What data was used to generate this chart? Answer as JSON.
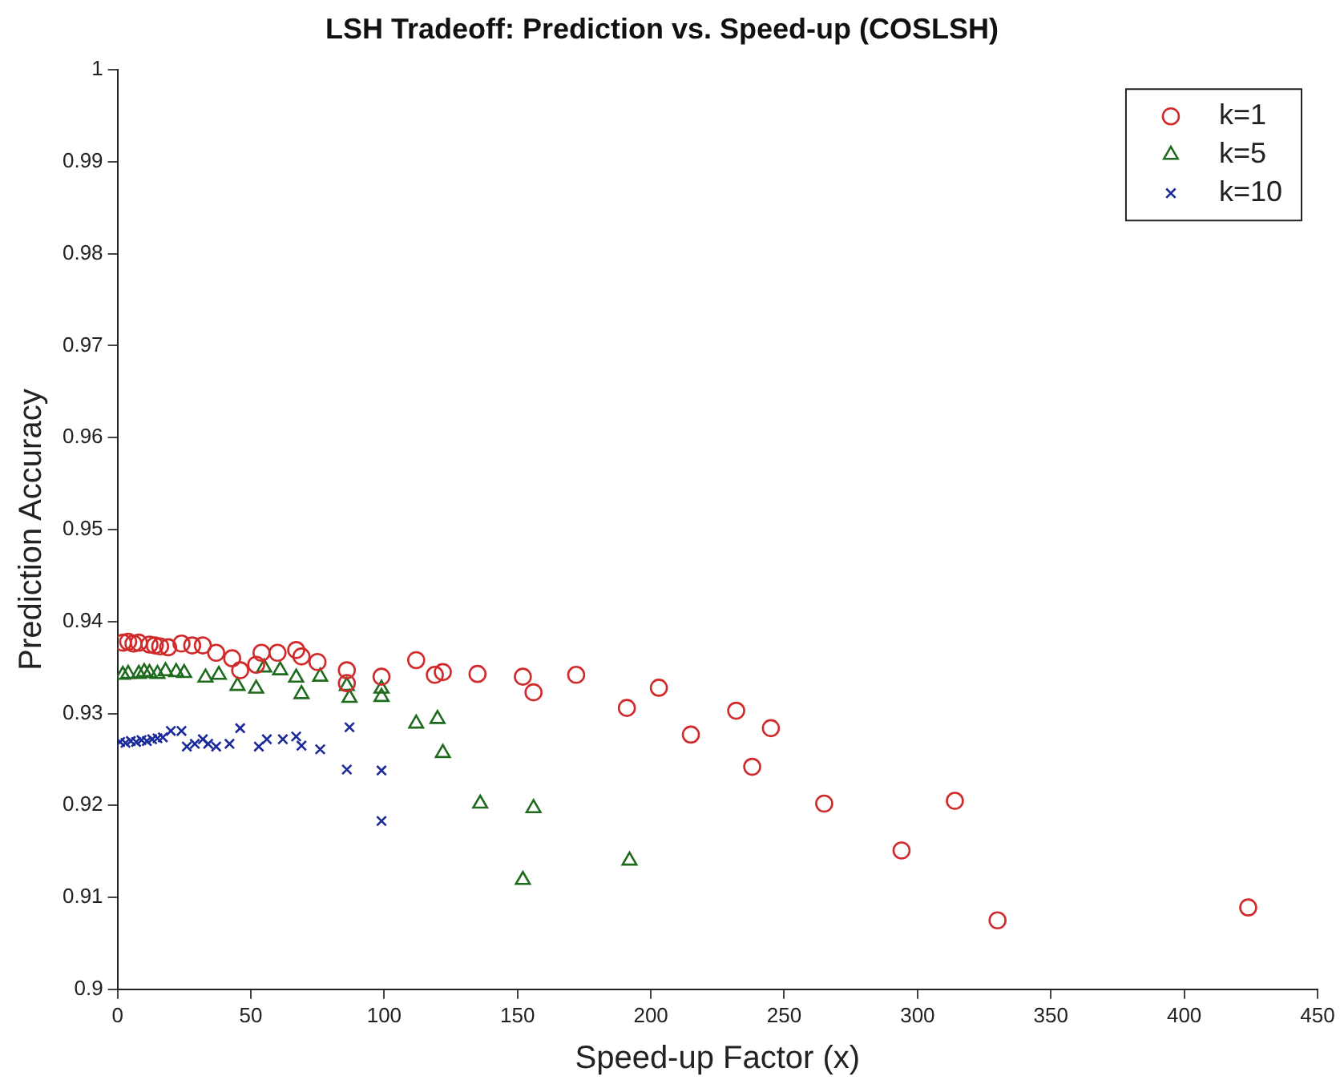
{
  "chart_data": {
    "type": "scatter",
    "title": "LSH Tradeoff: Prediction vs. Speed-up (COSLSH)",
    "xlabel": "Speed-up Factor (x)",
    "ylabel": "Prediction Accuracy",
    "xlim": [
      0,
      450
    ],
    "xticks": [
      0,
      50,
      100,
      150,
      200,
      250,
      300,
      350,
      400,
      450
    ],
    "ylim": [
      0.9,
      1
    ],
    "yticks": [
      0.9,
      0.91,
      0.92,
      0.93,
      0.94,
      0.95,
      0.96,
      0.97,
      0.98,
      0.99,
      1
    ],
    "grid": false,
    "legend": "top right",
    "series": [
      {
        "name": "k=1",
        "color": "#d02a2a",
        "marker": "circle",
        "x": [
          2,
          4,
          6,
          8,
          10,
          12,
          14,
          16,
          19,
          24,
          28,
          32,
          37,
          43,
          46,
          52,
          54,
          60,
          67,
          69,
          75,
          86,
          86,
          99,
          112,
          119,
          122,
          135,
          152,
          156,
          172,
          191,
          203,
          215,
          232,
          238,
          245,
          265,
          294,
          314,
          330,
          424
        ],
        "values": [
          0.9377,
          0.9378,
          0.9376,
          0.9377,
          null,
          0.9375,
          0.9374,
          0.9373,
          0.9372,
          0.9376,
          0.9374,
          0.9374,
          0.9366,
          0.936,
          0.9347,
          0.9353,
          0.9366,
          0.9366,
          0.9369,
          0.9362,
          0.9356,
          0.9347,
          0.9333,
          0.934,
          0.9358,
          0.9342,
          0.9345,
          0.9343,
          0.934,
          0.9323,
          0.9342,
          0.9306,
          0.9328,
          0.9277,
          0.9303,
          0.9242,
          0.9284,
          0.9202,
          0.9151,
          0.9205,
          0.9075,
          0.9089
        ]
      },
      {
        "name": "k=5",
        "color": "#1e6b1e",
        "marker": "triangle",
        "x": [
          2,
          4,
          6,
          8,
          10,
          12,
          15,
          18,
          22,
          25,
          33,
          38,
          45,
          52,
          55,
          61,
          67,
          69,
          76,
          86,
          87,
          99,
          99,
          112,
          120,
          122,
          136,
          152,
          156,
          192
        ],
        "values": [
          0.9342,
          0.9343,
          null,
          0.9343,
          0.9345,
          0.9344,
          0.9343,
          0.9346,
          0.9345,
          0.9344,
          0.9339,
          0.9342,
          0.933,
          0.9327,
          0.935,
          0.9347,
          0.9339,
          0.9321,
          0.934,
          0.933,
          0.9317,
          0.9327,
          0.9318,
          0.9289,
          0.9294,
          0.9257,
          0.9202,
          0.9119,
          0.9197,
          0.914
        ]
      },
      {
        "name": "k=10",
        "color": "#1a2a9a",
        "marker": "cross",
        "x": [
          1,
          3,
          5,
          7,
          9,
          11,
          13,
          15,
          17,
          20,
          24,
          26,
          29,
          32,
          34,
          37,
          42,
          46,
          53,
          56,
          62,
          67,
          69,
          76,
          86,
          87,
          99,
          99
        ],
        "values": [
          0.9269,
          0.9268,
          0.927,
          0.9269,
          0.9271,
          0.927,
          0.9272,
          0.9273,
          0.9274,
          0.9281,
          0.9281,
          0.9264,
          0.9267,
          0.9272,
          0.9267,
          0.9264,
          0.9267,
          0.9284,
          0.9264,
          0.9272,
          0.9272,
          0.9275,
          0.9265,
          0.9261,
          0.9239,
          0.9285,
          0.9238,
          0.9183
        ]
      }
    ]
  }
}
